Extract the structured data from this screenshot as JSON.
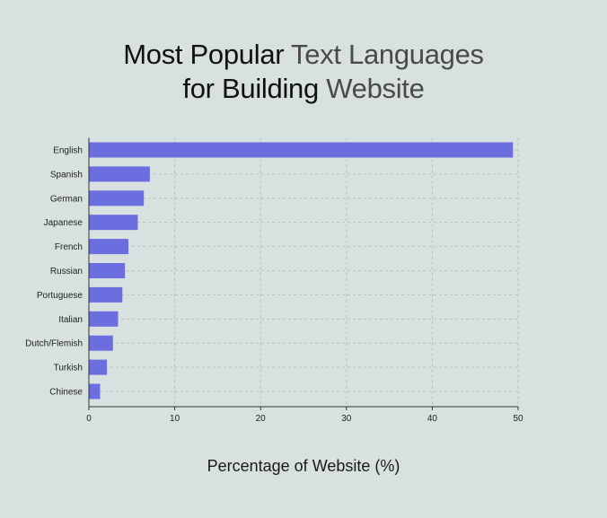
{
  "title": {
    "line1_part1": "Most Popular ",
    "line1_part2": "Text Languages",
    "line2_part1": "for Building ",
    "line2_part2": "Website"
  },
  "chart_data": {
    "type": "bar",
    "orientation": "horizontal",
    "title": "Most Popular Text Languages for Building Website",
    "xlabel": "Percentage of Website (%)",
    "ylabel": "",
    "xlim": [
      0,
      50
    ],
    "xticks": [
      0,
      10,
      20,
      30,
      40,
      50
    ],
    "grid": true,
    "categories": [
      "English",
      "Spanish",
      "German",
      "Japanese",
      "French",
      "Russian",
      "Portuguese",
      "Italian",
      "Dutch/Flemish",
      "Turkish",
      "Chinese"
    ],
    "values": [
      49.4,
      7.1,
      6.4,
      5.7,
      4.6,
      4.2,
      3.9,
      3.4,
      2.8,
      2.1,
      1.3
    ],
    "bar_color": "#6c6ddf"
  }
}
